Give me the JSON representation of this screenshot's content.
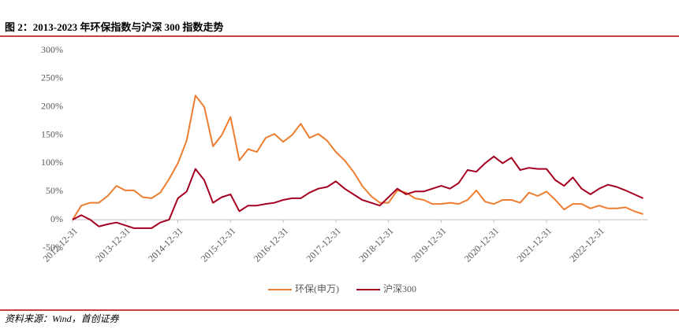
{
  "chart_data": {
    "type": "line",
    "title": "图 2：2013-2023 年环保指数与沪深 300 指数走势",
    "source": "资料来源：Wind，首创证券",
    "categories": [
      "2012-12-31",
      null,
      null,
      null,
      null,
      null,
      "2013-12-31",
      null,
      null,
      null,
      null,
      null,
      "2014-12-31",
      null,
      null,
      null,
      null,
      null,
      "2015-12-31",
      null,
      null,
      null,
      null,
      null,
      "2016-12-31",
      null,
      null,
      null,
      null,
      null,
      "2017-12-31",
      null,
      null,
      null,
      null,
      null,
      "2018-12-31",
      null,
      null,
      null,
      null,
      null,
      "2019-12-31",
      null,
      null,
      null,
      null,
      null,
      "2020-12-31",
      null,
      null,
      null,
      null,
      null,
      "2021-12-31",
      null,
      null,
      null,
      null,
      null,
      "2022-12-31",
      null,
      null,
      null,
      null,
      null
    ],
    "series": [
      {
        "name": "环保(申万)",
        "color": "#ED7D31",
        "values": [
          0,
          25,
          30,
          30,
          42,
          60,
          52,
          52,
          40,
          38,
          48,
          72,
          100,
          140,
          220,
          200,
          130,
          150,
          182,
          105,
          125,
          120,
          145,
          152,
          138,
          150,
          170,
          145,
          152,
          140,
          120,
          105,
          85,
          60,
          42,
          30,
          30,
          52,
          48,
          38,
          35,
          28,
          28,
          30,
          28,
          35,
          52,
          32,
          28,
          35,
          35,
          30,
          48,
          42,
          50,
          35,
          18,
          28,
          28,
          20,
          25,
          20,
          20,
          22,
          15,
          10
        ]
      },
      {
        "name": "沪深300",
        "color": "#A50021",
        "values": [
          0,
          8,
          0,
          -12,
          -8,
          -5,
          -10,
          -15,
          -15,
          -15,
          -5,
          0,
          38,
          50,
          90,
          70,
          30,
          40,
          45,
          15,
          25,
          25,
          28,
          30,
          35,
          38,
          38,
          48,
          55,
          58,
          68,
          55,
          45,
          35,
          30,
          25,
          40,
          55,
          45,
          50,
          50,
          55,
          60,
          55,
          65,
          88,
          85,
          100,
          112,
          100,
          110,
          88,
          92,
          90,
          90,
          70,
          60,
          75,
          55,
          45,
          55,
          62,
          58,
          52,
          45,
          38
        ]
      }
    ],
    "ylim": [
      -50,
      300
    ],
    "yticks": [
      {
        "value": -50,
        "label": "-50%"
      },
      {
        "value": 0,
        "label": "0%"
      },
      {
        "value": 50,
        "label": "50%"
      },
      {
        "value": 100,
        "label": "100%"
      },
      {
        "value": 150,
        "label": "150%"
      },
      {
        "value": 200,
        "label": "200%"
      },
      {
        "value": 250,
        "label": "250%"
      },
      {
        "value": 300,
        "label": "300%"
      }
    ],
    "grid": false,
    "legend": "bottom"
  }
}
